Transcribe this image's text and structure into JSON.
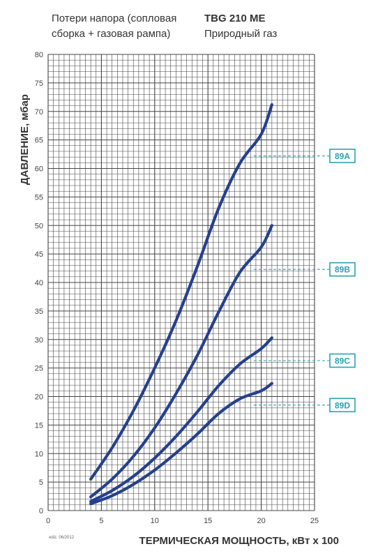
{
  "header": {
    "subtitle": "Потери напора (сопловая сборка + газовая рампа)",
    "model": "TBG 210 ME",
    "fuel": "Природный газ"
  },
  "footer_note": "ediz. 06/2012",
  "colors": {
    "curve": "#25408f",
    "grid": "#444444",
    "marker": "#2aa3ad"
  },
  "chart_data": {
    "type": "line",
    "xlabel": "ТЕРМИЧЕСКАЯ МОЩНОСТЬ, кВт х 100",
    "ylabel": "ДАВЛЕНИЕ, мбар",
    "xlim": [
      0,
      25
    ],
    "ylim": [
      0,
      80
    ],
    "x_ticks": [
      "0",
      "5",
      "10",
      "15",
      "20",
      "25"
    ],
    "y_ticks": [
      "0",
      "5",
      "10",
      "15",
      "20",
      "25",
      "30",
      "35",
      "40",
      "45",
      "50",
      "55",
      "60",
      "65",
      "70",
      "75",
      "80"
    ],
    "grid": true,
    "series": [
      {
        "name": "89A",
        "x": [
          4,
          6,
          8,
          10,
          12,
          14,
          16,
          18,
          20,
          21
        ],
        "y": [
          5.5,
          11.0,
          17.5,
          25.0,
          33.3,
          42.8,
          53.0,
          60.9,
          66.0,
          71.2
        ],
        "marker_y": 62.2
      },
      {
        "name": "89B",
        "x": [
          4,
          6,
          8,
          10,
          12,
          14,
          16,
          18,
          20,
          21
        ],
        "y": [
          2.4,
          5.5,
          9.5,
          14.5,
          20.5,
          27.2,
          34.8,
          41.8,
          46.2,
          50.0
        ],
        "marker_y": 42.3
      },
      {
        "name": "89C",
        "x": [
          4,
          6,
          8,
          10,
          12,
          14,
          16,
          18,
          20,
          21
        ],
        "y": [
          1.6,
          3.5,
          6.0,
          9.2,
          13.0,
          17.3,
          21.9,
          25.7,
          28.4,
          30.3
        ],
        "marker_y": 26.3
      },
      {
        "name": "89D",
        "x": [
          4,
          6,
          8,
          10,
          12,
          14,
          16,
          18,
          20,
          21
        ],
        "y": [
          1.2,
          2.6,
          4.6,
          7.1,
          10.1,
          13.4,
          17.0,
          19.6,
          21.0,
          22.3
        ],
        "marker_y": 18.5
      }
    ]
  }
}
